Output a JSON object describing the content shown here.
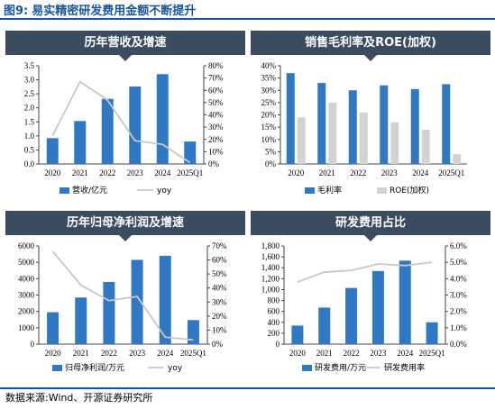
{
  "figure": {
    "label": "图9:",
    "title": "易实精密研发费用金额不断提升",
    "source": "数据来源:Wind、开源证券研究所",
    "accent_color": "#1a55a0",
    "header_color": "#3b4c60"
  },
  "colors": {
    "bar_blue": "#2f78c4",
    "line_grey": "#c8c8c8",
    "bar_grey": "#d3d3d3"
  },
  "chart_data": [
    {
      "type": "bar",
      "title": "历年营收及增速",
      "categories": [
        "2020",
        "2021",
        "2022",
        "2023",
        "2024",
        "2025Q1"
      ],
      "series": [
        {
          "name": "营收/亿元",
          "type": "bar",
          "axis": "left",
          "color": "#2f78c4",
          "values": [
            0.92,
            1.53,
            2.32,
            2.76,
            3.2,
            0.8
          ]
        },
        {
          "name": "yoy",
          "type": "line",
          "axis": "right",
          "color": "#c8c8c8",
          "values": [
            0.23,
            0.67,
            0.52,
            0.19,
            0.16,
            0.01
          ]
        }
      ],
      "y_left": {
        "min": 0,
        "max": 3.5,
        "step": 0.5,
        "ticks": [
          "0.0",
          "0.5",
          "1.0",
          "1.5",
          "2.0",
          "2.5",
          "3.0",
          "3.5"
        ]
      },
      "y_right": {
        "min": 0,
        "max": 0.8,
        "step": 0.1,
        "ticks": [
          "0%",
          "10%",
          "20%",
          "30%",
          "40%",
          "50%",
          "60%",
          "70%",
          "80%"
        ]
      },
      "grid": false,
      "legend": "bottom"
    },
    {
      "type": "bar",
      "title": "销售毛利率及ROE(加权)",
      "categories": [
        "2020",
        "2021",
        "2022",
        "2023",
        "2024",
        "2025Q1"
      ],
      "series": [
        {
          "name": "毛利率",
          "type": "bar",
          "axis": "left",
          "color": "#2f78c4",
          "values": [
            0.37,
            0.33,
            0.3,
            0.32,
            0.305,
            0.325
          ]
        },
        {
          "name": "ROE(加权)",
          "type": "bar",
          "axis": "left",
          "color": "#d3d3d3",
          "values": [
            0.19,
            0.25,
            0.21,
            0.17,
            0.14,
            0.04
          ]
        }
      ],
      "y_left": {
        "min": 0,
        "max": 0.4,
        "step": 0.05,
        "ticks": [
          "0%",
          "5%",
          "10%",
          "15%",
          "20%",
          "25%",
          "30%",
          "35%",
          "40%"
        ]
      },
      "grid": false,
      "legend": "bottom"
    },
    {
      "type": "bar",
      "title": "历年归母净利润及增速",
      "categories": [
        "2020",
        "2021",
        "2022",
        "2023",
        "2024",
        "2025Q1"
      ],
      "series": [
        {
          "name": "归母净利润/万元",
          "type": "bar",
          "axis": "left",
          "color": "#2f78c4",
          "values": [
            1950,
            2850,
            3800,
            5150,
            5400,
            1470
          ]
        },
        {
          "name": "yoy",
          "type": "line",
          "axis": "right",
          "color": "#c8c8c8",
          "values": [
            0.66,
            0.42,
            0.31,
            0.34,
            0.05,
            0.03
          ]
        }
      ],
      "y_left": {
        "min": 0,
        "max": 6000,
        "step": 1000,
        "ticks": [
          "0",
          "1000",
          "2000",
          "3000",
          "4000",
          "5000",
          "6000"
        ]
      },
      "y_right": {
        "min": 0,
        "max": 0.7,
        "step": 0.1,
        "ticks": [
          "0%",
          "10%",
          "20%",
          "30%",
          "40%",
          "50%",
          "60%",
          "70%"
        ]
      },
      "grid": false,
      "legend": "bottom"
    },
    {
      "type": "bar",
      "title": "研发费用占比",
      "categories": [
        "2020",
        "2021",
        "2022",
        "2023",
        "2024",
        "2025Q1"
      ],
      "series": [
        {
          "name": "研发费用/万元",
          "type": "bar",
          "axis": "left",
          "color": "#2f78c4",
          "values": [
            340,
            670,
            1030,
            1340,
            1530,
            400
          ]
        },
        {
          "name": "研发费用率",
          "type": "line",
          "axis": "right",
          "color": "#c8c8c8",
          "values": [
            0.038,
            0.044,
            0.045,
            0.049,
            0.048,
            0.05
          ]
        }
      ],
      "y_left": {
        "min": 0,
        "max": 1800,
        "step": 200,
        "ticks": [
          "0",
          "200",
          "400",
          "600",
          "800",
          "1,000",
          "1,200",
          "1,400",
          "1,600",
          "1,800"
        ]
      },
      "y_right": {
        "min": 0,
        "max": 0.06,
        "step": 0.01,
        "ticks": [
          "0.0%",
          "1.0%",
          "2.0%",
          "3.0%",
          "4.0%",
          "5.0%",
          "6.0%"
        ]
      },
      "grid": false,
      "legend": "bottom"
    }
  ]
}
